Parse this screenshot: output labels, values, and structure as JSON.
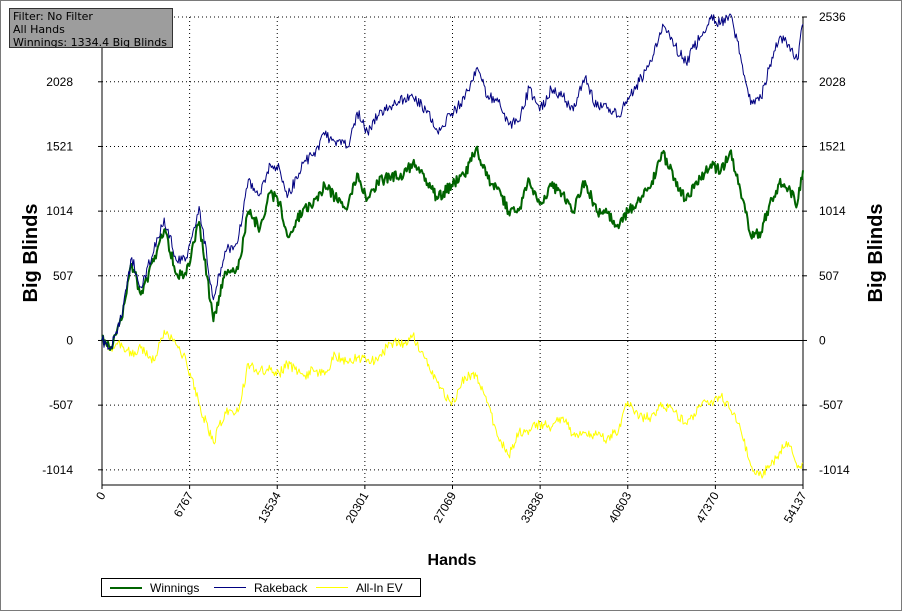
{
  "info": {
    "filter": "Filter: No Filter",
    "hands": "All Hands",
    "winnings": "Winnings: 1334.4 Big Blinds"
  },
  "chart_data": {
    "type": "line",
    "xlabel": "Hands",
    "ylabel_left": "Big Blinds",
    "ylabel_right": "Big Blinds",
    "xlim": [
      0,
      54137
    ],
    "ylim": [
      -1133,
      2536
    ],
    "x_ticks": [
      "0",
      "6767",
      "13534",
      "20301",
      "27069",
      "33836",
      "40603",
      "47370",
      "54137"
    ],
    "y_ticks_left": [
      "-1014",
      "-507",
      "0",
      "507",
      "1014",
      "1521",
      "2028"
    ],
    "y_ticks_right": [
      "-1014",
      "-507",
      "0",
      "507",
      "1014",
      "1521",
      "2028",
      "2536"
    ],
    "grid": true,
    "legend_position": "bottom-left",
    "series": [
      {
        "name": "Winnings",
        "color": "#006400",
        "x": [
          0,
          700,
          1500,
          2300,
          3000,
          4000,
          4800,
          5800,
          6500,
          7500,
          8600,
          9500,
          10500,
          11300,
          12200,
          13000,
          13700,
          14300,
          15600,
          16300,
          17200,
          18000,
          19000,
          19700,
          20500,
          21300,
          22200,
          23300,
          24000,
          25000,
          25900,
          27000,
          28000,
          28900,
          29800,
          30600,
          31400,
          32200,
          33000,
          33800,
          34700,
          35600,
          36400,
          37300,
          38200,
          39000,
          39900,
          40600,
          41500,
          42400,
          43300,
          44200,
          45100,
          46200,
          47000,
          47800,
          48500,
          49300,
          50100,
          50900,
          51500,
          52300,
          53000,
          53700,
          54137
        ],
        "y": [
          0,
          -50,
          160,
          600,
          360,
          620,
          870,
          520,
          520,
          930,
          150,
          540,
          560,
          1010,
          880,
          1160,
          1080,
          820,
          1040,
          1060,
          1220,
          1120,
          1060,
          1310,
          1110,
          1240,
          1280,
          1300,
          1390,
          1270,
          1110,
          1220,
          1290,
          1510,
          1270,
          1200,
          1010,
          1020,
          1260,
          1070,
          1210,
          1150,
          1010,
          1250,
          1010,
          1000,
          880,
          1010,
          1110,
          1210,
          1470,
          1270,
          1100,
          1270,
          1380,
          1330,
          1480,
          1180,
          820,
          850,
          1050,
          1230,
          1190,
          1070,
          1334
        ]
      },
      {
        "name": "Rakeback",
        "color": "#000080",
        "x": [
          0,
          700,
          1500,
          2300,
          3000,
          4000,
          4800,
          5800,
          6500,
          7500,
          8600,
          9500,
          10500,
          11300,
          12200,
          13000,
          13700,
          14300,
          15600,
          16300,
          17200,
          18000,
          19000,
          19700,
          20500,
          21300,
          22200,
          23300,
          24000,
          25000,
          25900,
          27000,
          28000,
          28900,
          29800,
          30600,
          31400,
          32200,
          33000,
          33800,
          34700,
          35600,
          36400,
          37300,
          38200,
          39000,
          39900,
          40600,
          41500,
          42400,
          43300,
          44200,
          45100,
          46200,
          47000,
          47800,
          48500,
          49300,
          50100,
          50900,
          51500,
          52300,
          53000,
          53700,
          54137
        ],
        "y": [
          0,
          -50,
          180,
          650,
          420,
          700,
          960,
          620,
          650,
          1050,
          320,
          700,
          780,
          1260,
          1150,
          1380,
          1350,
          1120,
          1400,
          1450,
          1610,
          1560,
          1520,
          1790,
          1640,
          1760,
          1840,
          1890,
          1910,
          1810,
          1640,
          1780,
          1890,
          2130,
          1920,
          1870,
          1690,
          1720,
          1980,
          1800,
          1970,
          1910,
          1800,
          2060,
          1830,
          1820,
          1760,
          1900,
          2030,
          2190,
          2480,
          2310,
          2180,
          2380,
          2520,
          2490,
          2560,
          2240,
          1850,
          1900,
          2130,
          2370,
          2320,
          2200,
          2480
        ]
      },
      {
        "name": "All-In EV",
        "color": "#ffff00",
        "x": [
          0,
          700,
          1500,
          2300,
          3000,
          4000,
          4800,
          5800,
          6500,
          7500,
          8600,
          9500,
          10500,
          11300,
          12200,
          13000,
          13700,
          14300,
          15600,
          16300,
          17200,
          18000,
          19000,
          19700,
          20500,
          21300,
          22200,
          23300,
          24000,
          25000,
          25900,
          27000,
          28000,
          28900,
          29800,
          30600,
          31400,
          32200,
          33000,
          33800,
          34700,
          35600,
          36400,
          37300,
          38200,
          39000,
          39900,
          40600,
          41500,
          42400,
          43300,
          44200,
          45100,
          46200,
          47000,
          47800,
          48500,
          49300,
          50100,
          50900,
          51500,
          52300,
          53000,
          53700,
          54137
        ],
        "y": [
          0,
          -60,
          -20,
          -120,
          -60,
          -160,
          80,
          -40,
          -160,
          -500,
          -800,
          -560,
          -560,
          -180,
          -240,
          -230,
          -260,
          -180,
          -280,
          -230,
          -270,
          -110,
          -180,
          -130,
          -150,
          -160,
          -20,
          -20,
          40,
          -140,
          -330,
          -510,
          -280,
          -280,
          -490,
          -760,
          -900,
          -720,
          -700,
          -650,
          -680,
          -600,
          -740,
          -720,
          -740,
          -770,
          -700,
          -480,
          -600,
          -600,
          -500,
          -560,
          -650,
          -520,
          -480,
          -440,
          -540,
          -690,
          -980,
          -1050,
          -1000,
          -880,
          -800,
          -1000,
          -960
        ]
      }
    ]
  }
}
